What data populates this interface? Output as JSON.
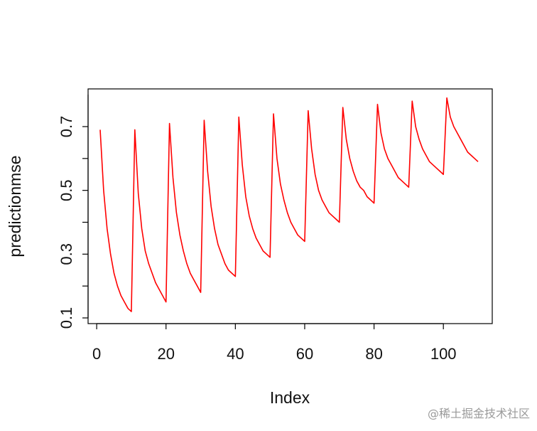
{
  "chart_data": {
    "type": "line",
    "xlabel": "Index",
    "ylabel": "predictionmse",
    "xlim": [
      1,
      110
    ],
    "ylim": [
      0.1,
      0.8
    ],
    "x_ticks": [
      "0",
      "20",
      "40",
      "60",
      "80",
      "100"
    ],
    "y_ticks": [
      "0.1",
      "0.3",
      "0.5",
      "0.7"
    ],
    "y_minor_ticks": [
      0.2,
      0.4,
      0.6
    ],
    "series": [
      {
        "color": "#ff0000",
        "x": [
          1,
          2,
          3,
          4,
          5,
          6,
          7,
          8,
          9,
          10,
          11,
          12,
          13,
          14,
          15,
          16,
          17,
          18,
          19,
          20,
          21,
          22,
          23,
          24,
          25,
          26,
          27,
          28,
          29,
          30,
          31,
          32,
          33,
          34,
          35,
          36,
          37,
          38,
          39,
          40,
          41,
          42,
          43,
          44,
          45,
          46,
          47,
          48,
          49,
          50,
          51,
          52,
          53,
          54,
          55,
          56,
          57,
          58,
          59,
          60,
          61,
          62,
          63,
          64,
          65,
          66,
          67,
          68,
          69,
          70,
          71,
          72,
          73,
          74,
          75,
          76,
          77,
          78,
          79,
          80,
          81,
          82,
          83,
          84,
          85,
          86,
          87,
          88,
          89,
          90,
          91,
          92,
          93,
          94,
          95,
          96,
          97,
          98,
          99,
          100,
          101,
          102,
          103,
          104,
          105,
          106,
          107,
          108,
          109,
          110
        ],
        "values": [
          0.69,
          0.5,
          0.38,
          0.3,
          0.24,
          0.2,
          0.17,
          0.15,
          0.13,
          0.12,
          0.69,
          0.49,
          0.38,
          0.31,
          0.27,
          0.24,
          0.21,
          0.19,
          0.17,
          0.15,
          0.71,
          0.54,
          0.43,
          0.36,
          0.31,
          0.27,
          0.24,
          0.22,
          0.2,
          0.18,
          0.72,
          0.56,
          0.45,
          0.38,
          0.33,
          0.3,
          0.27,
          0.25,
          0.24,
          0.23,
          0.73,
          0.58,
          0.48,
          0.42,
          0.38,
          0.35,
          0.33,
          0.31,
          0.3,
          0.29,
          0.74,
          0.6,
          0.52,
          0.47,
          0.43,
          0.4,
          0.38,
          0.36,
          0.35,
          0.34,
          0.75,
          0.63,
          0.55,
          0.5,
          0.47,
          0.45,
          0.43,
          0.42,
          0.41,
          0.4,
          0.76,
          0.66,
          0.6,
          0.56,
          0.53,
          0.51,
          0.5,
          0.48,
          0.47,
          0.46,
          0.77,
          0.68,
          0.63,
          0.6,
          0.58,
          0.56,
          0.54,
          0.53,
          0.52,
          0.51,
          0.78,
          0.7,
          0.66,
          0.63,
          0.61,
          0.59,
          0.58,
          0.57,
          0.56,
          0.55,
          0.79,
          0.73,
          0.7,
          0.68,
          0.66,
          0.64,
          0.62,
          0.61,
          0.6,
          0.59
        ]
      }
    ],
    "grid": false,
    "legend": "none"
  },
  "watermark": "@稀土掘金技术社区"
}
